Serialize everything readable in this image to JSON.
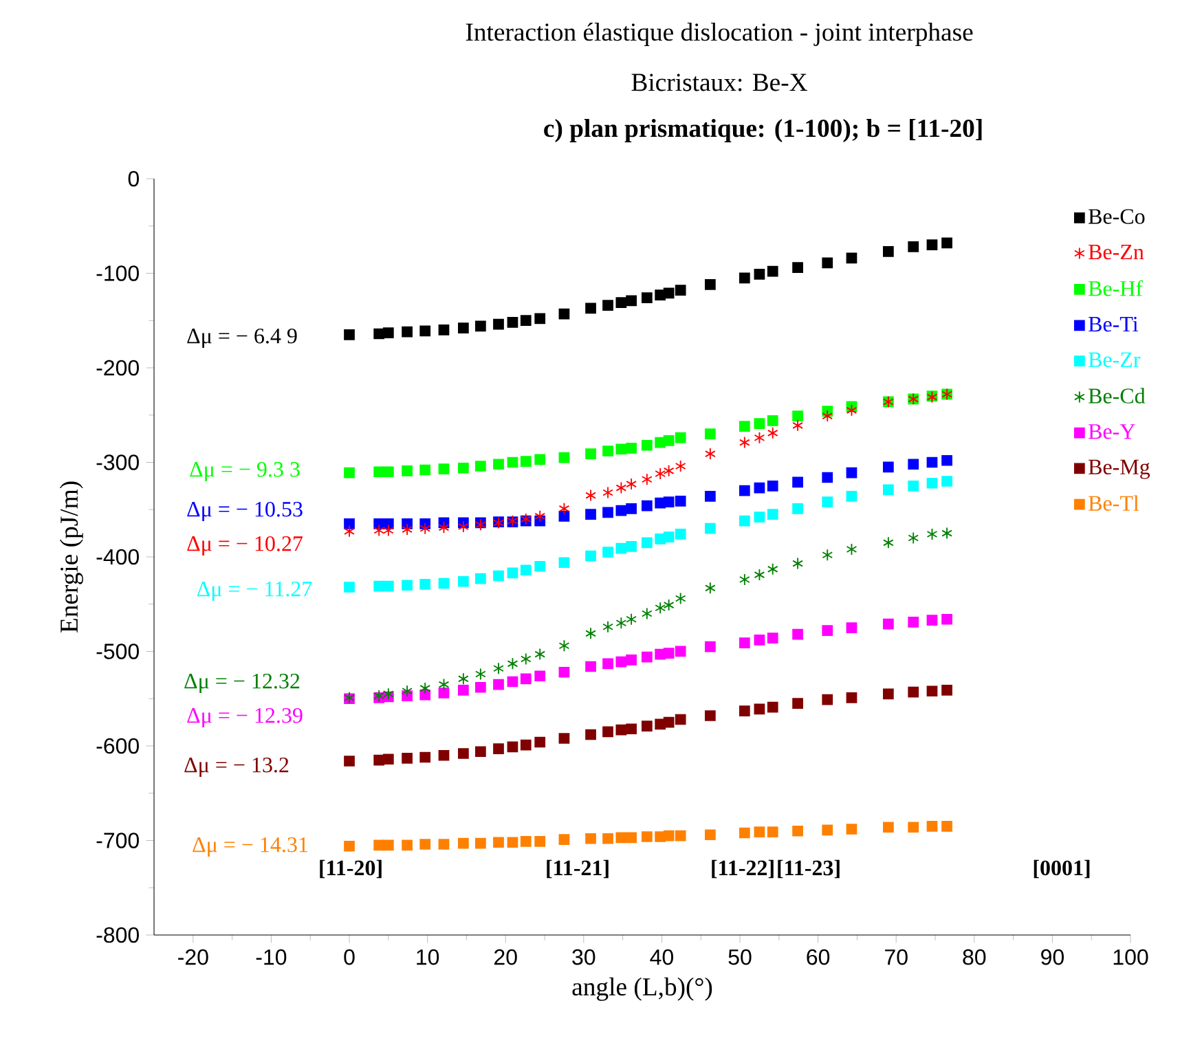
{
  "chart_data": {
    "type": "scatter",
    "title": "Interaction élastique  dislocation - joint  interphase",
    "subtitle": "Bicristaux: Be-X",
    "xlabel": "angle (L,b)(°)",
    "ylabel": "Energie (pJ/m)",
    "x": [
      0,
      3.8,
      5,
      7.4,
      9.7,
      12.1,
      14.6,
      16.8,
      19.1,
      20.9,
      22.6,
      24.4,
      27.5,
      30.9,
      33.1,
      34.8,
      36.1,
      38.1,
      39.8,
      40.9,
      42.4,
      46.2,
      50.6,
      52.5,
      54.2,
      57.4,
      61.2,
      64.3,
      69.0,
      72.2,
      74.6,
      76.5
    ],
    "series": [
      {
        "name": "Be-Co",
        "color": "#000000",
        "marker": "square",
        "values": [
          -165,
          -164,
          -163,
          -162,
          -161,
          -160,
          -158,
          -156,
          -154,
          -152,
          -150,
          -148,
          -143,
          -137,
          -134,
          -131,
          -129,
          -126,
          -123,
          -121,
          -118,
          -112,
          -105,
          -101,
          -98,
          -94,
          -89,
          -84,
          -77,
          -72,
          -70,
          -68
        ]
      },
      {
        "name": "Be-Zn",
        "color": "#ff0000",
        "marker": "cross",
        "values": [
          -373,
          -372,
          -372,
          -371,
          -370,
          -369,
          -368,
          -366,
          -364,
          -362,
          -360,
          -357,
          -349,
          -335,
          -332,
          -327,
          -323,
          -318,
          -312,
          -309,
          -304,
          -291,
          -279,
          -274,
          -269,
          -261,
          -251,
          -245,
          -236,
          -233,
          -231,
          -228
        ]
      },
      {
        "name": "Be-Hf",
        "color": "#00ff00",
        "marker": "square",
        "values": [
          -311,
          -310,
          -310,
          -309,
          -308,
          -307,
          -306,
          -304,
          -302,
          -300,
          -299,
          -297,
          -295,
          -291,
          -288,
          -286,
          -285,
          -282,
          -279,
          -277,
          -274,
          -270,
          -262,
          -259,
          -256,
          -251,
          -246,
          -241,
          -236,
          -233,
          -230,
          -228
        ]
      },
      {
        "name": "Be-Ti",
        "color": "#0000ff",
        "marker": "square",
        "values": [
          -365,
          -365,
          -365,
          -365,
          -365,
          -364,
          -364,
          -364,
          -363,
          -363,
          -362,
          -362,
          -357,
          -355,
          -353,
          -351,
          -349,
          -346,
          -343,
          -342,
          -341,
          -336,
          -330,
          -327,
          -325,
          -321,
          -316,
          -311,
          -305,
          -302,
          -300,
          -298
        ]
      },
      {
        "name": "Be-Zr",
        "color": "#00ffff",
        "marker": "square",
        "values": [
          -432,
          -431,
          -431,
          -430,
          -429,
          -428,
          -426,
          -423,
          -420,
          -417,
          -414,
          -410,
          -406,
          -399,
          -395,
          -391,
          -389,
          -385,
          -381,
          -379,
          -376,
          -370,
          -362,
          -358,
          -355,
          -349,
          -342,
          -336,
          -329,
          -325,
          -322,
          -320
        ]
      },
      {
        "name": "Be-Cd",
        "color": "#008000",
        "marker": "cross",
        "values": [
          -549,
          -547,
          -545,
          -542,
          -539,
          -535,
          -529,
          -524,
          -518,
          -513,
          -508,
          -503,
          -494,
          -481,
          -474,
          -470,
          -466,
          -460,
          -454,
          -451,
          -444,
          -433,
          -424,
          -419,
          -413,
          -407,
          -398,
          -392,
          -385,
          -380,
          -376,
          -375
        ]
      },
      {
        "name": "Be-Y",
        "color": "#ff00ff",
        "marker": "square",
        "values": [
          -550,
          -549,
          -548,
          -547,
          -546,
          -544,
          -541,
          -538,
          -535,
          -532,
          -529,
          -526,
          -522,
          -516,
          -513,
          -511,
          -509,
          -506,
          -503,
          -502,
          -500,
          -495,
          -491,
          -488,
          -486,
          -482,
          -478,
          -475,
          -471,
          -469,
          -467,
          -466
        ]
      },
      {
        "name": "Be-Mg",
        "color": "#800000",
        "marker": "square",
        "values": [
          -616,
          -615,
          -614,
          -613,
          -612,
          -610,
          -608,
          -606,
          -603,
          -601,
          -599,
          -596,
          -592,
          -588,
          -585,
          -583,
          -582,
          -579,
          -577,
          -575,
          -572,
          -568,
          -563,
          -561,
          -559,
          -555,
          -551,
          -549,
          -545,
          -543,
          -542,
          -541
        ]
      },
      {
        "name": "Be-Tl",
        "color": "#ff8000",
        "marker": "square",
        "values": [
          -706,
          -705,
          -705,
          -705,
          -704,
          -704,
          -703,
          -703,
          -702,
          -702,
          -701,
          -701,
          -699,
          -698,
          -698,
          -697,
          -697,
          -696,
          -696,
          -695,
          -695,
          -694,
          -692,
          -691,
          -691,
          -690,
          -689,
          -688,
          -686,
          -686,
          -685,
          -685
        ]
      }
    ],
    "annotations": [
      "c) plan prismatique: (1-100); b = [11-20]",
      "Δμ = − 6.4 9",
      "Δμ = − 9.3 3",
      "Δμ = − 10.53",
      "Δμ = − 10.27",
      "Δμ = − 11.27",
      "Δμ = − 12.32",
      "Δμ = − 12.39",
      "Δμ = − 13.2",
      "Δμ = − 14.31",
      "[11-20]",
      "[11-21]",
      "[11-22]",
      "[11-23]",
      "[0001]"
    ],
    "xlim": [
      -25,
      100
    ],
    "ylim": [
      -800,
      0
    ],
    "xticks": [
      -20,
      -10,
      0,
      10,
      20,
      30,
      40,
      50,
      60,
      70,
      80,
      90,
      100
    ],
    "yticks": [
      0,
      -100,
      -200,
      -300,
      -400,
      -500,
      -600,
      -700,
      -800
    ],
    "legend": "top right"
  }
}
